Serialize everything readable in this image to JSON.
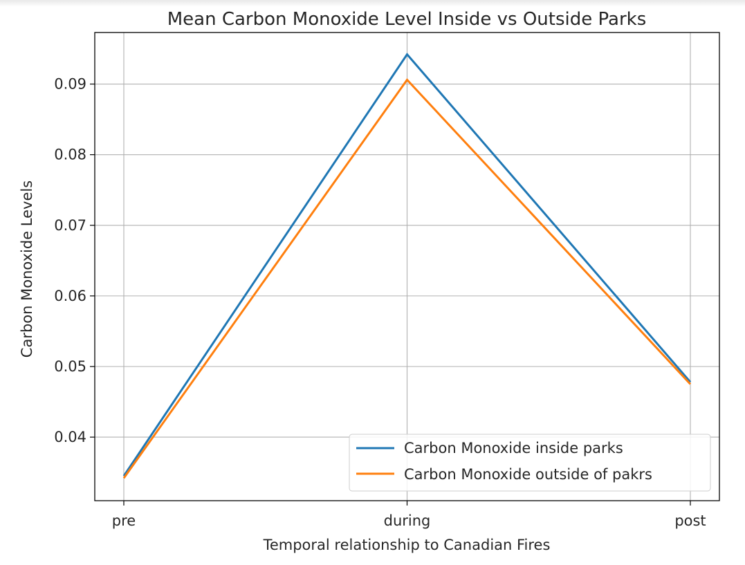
{
  "chart_data": {
    "type": "line",
    "title": "Mean Carbon Monoxide Level Inside vs Outside Parks",
    "xlabel": "Temporal relationship to Canadian Fires",
    "ylabel": "Carbon Monoxide Levels",
    "categories": [
      "pre",
      "during",
      "post"
    ],
    "series": [
      {
        "name": "Carbon Monoxide inside parks",
        "values": [
          0.0345,
          0.0942,
          0.0478
        ],
        "color": "#1f77b4"
      },
      {
        "name": "Carbon Monoxide outside of pakrs",
        "values": [
          0.0342,
          0.0906,
          0.0475
        ],
        "color": "#ff7f0e"
      }
    ],
    "ylim": [
      0.031,
      0.0973
    ],
    "yticks": [
      0.04,
      0.05,
      0.06,
      0.07,
      0.08,
      0.09
    ],
    "ytick_labels": [
      "0.04",
      "0.05",
      "0.06",
      "0.07",
      "0.08",
      "0.09"
    ],
    "grid": true,
    "legend_position": "lower-right"
  }
}
